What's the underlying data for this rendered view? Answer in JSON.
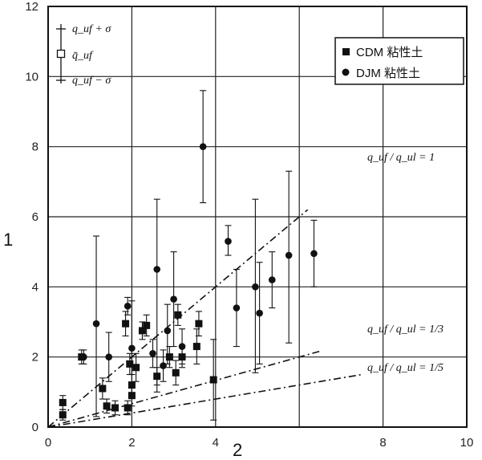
{
  "chart_data": {
    "type": "scatter",
    "xlabel": "2",
    "ylabel": "1",
    "xlim": [
      0,
      10
    ],
    "ylim": [
      0,
      12
    ],
    "xticks": [
      "0",
      "2",
      "4",
      "8",
      "10"
    ],
    "yticks": [
      "0",
      "2",
      "4",
      "6",
      "8",
      "10",
      "12"
    ],
    "grid": true,
    "legend_errorbar": {
      "upper": "q_uf + σ",
      "mean": "q̄_uf",
      "lower": "q_uf − σ"
    },
    "legend_series": [
      "CDM 粘性土",
      "DJM 粘性土"
    ],
    "lines": [
      {
        "label": "q_uf / q_ul = 1",
        "slope": 1
      },
      {
        "label": "q_uf / q_ul = 1/3",
        "slope": 0.3333
      },
      {
        "label": "q_uf / q_ul = 1/5",
        "slope": 0.2
      }
    ],
    "series": [
      {
        "name": "CDM 粘性土",
        "marker": "square",
        "points": [
          {
            "x": 0.35,
            "y": 0.7,
            "lo": 0.5,
            "hi": 0.9
          },
          {
            "x": 0.35,
            "y": 0.35,
            "lo": 0.2,
            "hi": 0.5
          },
          {
            "x": 0.8,
            "y": 2.0,
            "lo": 1.8,
            "hi": 2.2
          },
          {
            "x": 1.3,
            "y": 1.1,
            "lo": 0.8,
            "hi": 1.4
          },
          {
            "x": 1.4,
            "y": 0.6,
            "lo": 0.4,
            "hi": 0.8
          },
          {
            "x": 1.6,
            "y": 0.55,
            "lo": 0.35,
            "hi": 0.75
          },
          {
            "x": 1.9,
            "y": 0.55,
            "lo": 0.35,
            "hi": 0.75
          },
          {
            "x": 1.85,
            "y": 2.95,
            "lo": 2.6,
            "hi": 3.3
          },
          {
            "x": 1.95,
            "y": 1.8,
            "lo": 1.5,
            "hi": 2.1
          },
          {
            "x": 2.0,
            "y": 1.2,
            "lo": 0.9,
            "hi": 1.5
          },
          {
            "x": 2.0,
            "y": 0.9,
            "lo": 0.6,
            "hi": 1.2
          },
          {
            "x": 2.1,
            "y": 1.7,
            "lo": 1.3,
            "hi": 2.1
          },
          {
            "x": 2.25,
            "y": 2.75,
            "lo": 2.5,
            "hi": 3.0
          },
          {
            "x": 2.35,
            "y": 2.9,
            "lo": 2.6,
            "hi": 3.2
          },
          {
            "x": 2.6,
            "y": 1.45,
            "lo": 1.2,
            "hi": 1.7
          },
          {
            "x": 2.9,
            "y": 2.0,
            "lo": 1.7,
            "hi": 2.3
          },
          {
            "x": 3.05,
            "y": 1.55,
            "lo": 1.2,
            "hi": 1.9
          },
          {
            "x": 3.1,
            "y": 3.2,
            "lo": 2.9,
            "hi": 3.5
          },
          {
            "x": 3.2,
            "y": 2.0,
            "lo": 1.7,
            "hi": 2.3
          },
          {
            "x": 3.55,
            "y": 2.3,
            "lo": 1.8,
            "hi": 2.8
          },
          {
            "x": 3.6,
            "y": 2.95,
            "lo": 2.6,
            "hi": 3.3
          },
          {
            "x": 3.95,
            "y": 1.35,
            "lo": 0.2,
            "hi": 2.5
          }
        ]
      },
      {
        "name": "DJM 粘性土",
        "marker": "circle",
        "points": [
          {
            "x": 0.85,
            "y": 2.0,
            "lo": 1.8,
            "hi": 2.2
          },
          {
            "x": 1.15,
            "y": 2.95,
            "lo": 0.3,
            "hi": 5.45
          },
          {
            "x": 1.45,
            "y": 2.0,
            "lo": 1.3,
            "hi": 2.7
          },
          {
            "x": 1.9,
            "y": 3.45,
            "lo": 3.2,
            "hi": 3.7
          },
          {
            "x": 2.0,
            "y": 2.25,
            "lo": 1.5,
            "hi": 3.6
          },
          {
            "x": 2.5,
            "y": 2.1,
            "lo": 1.7,
            "hi": 2.5
          },
          {
            "x": 2.6,
            "y": 4.5,
            "lo": 1.0,
            "hi": 6.5
          },
          {
            "x": 2.75,
            "y": 1.75,
            "lo": 1.3,
            "hi": 2.2
          },
          {
            "x": 2.85,
            "y": 2.75,
            "lo": 1.8,
            "hi": 3.5
          },
          {
            "x": 3.0,
            "y": 3.65,
            "lo": 2.3,
            "hi": 5.0
          },
          {
            "x": 3.2,
            "y": 2.3,
            "lo": 1.8,
            "hi": 2.8
          },
          {
            "x": 3.7,
            "y": 8.0,
            "lo": 6.4,
            "hi": 9.6
          },
          {
            "x": 4.3,
            "y": 5.3,
            "lo": 4.9,
            "hi": 5.75
          },
          {
            "x": 4.5,
            "y": 3.4,
            "lo": 2.3,
            "hi": 4.5
          },
          {
            "x": 4.95,
            "y": 4.0,
            "lo": 1.55,
            "hi": 6.5
          },
          {
            "x": 5.05,
            "y": 3.25,
            "lo": 1.8,
            "hi": 4.7
          },
          {
            "x": 5.35,
            "y": 4.2,
            "lo": 3.4,
            "hi": 5.0
          },
          {
            "x": 5.75,
            "y": 4.9,
            "lo": 2.4,
            "hi": 7.3
          },
          {
            "x": 6.35,
            "y": 4.95,
            "lo": 4.0,
            "hi": 5.9
          }
        ]
      }
    ]
  }
}
